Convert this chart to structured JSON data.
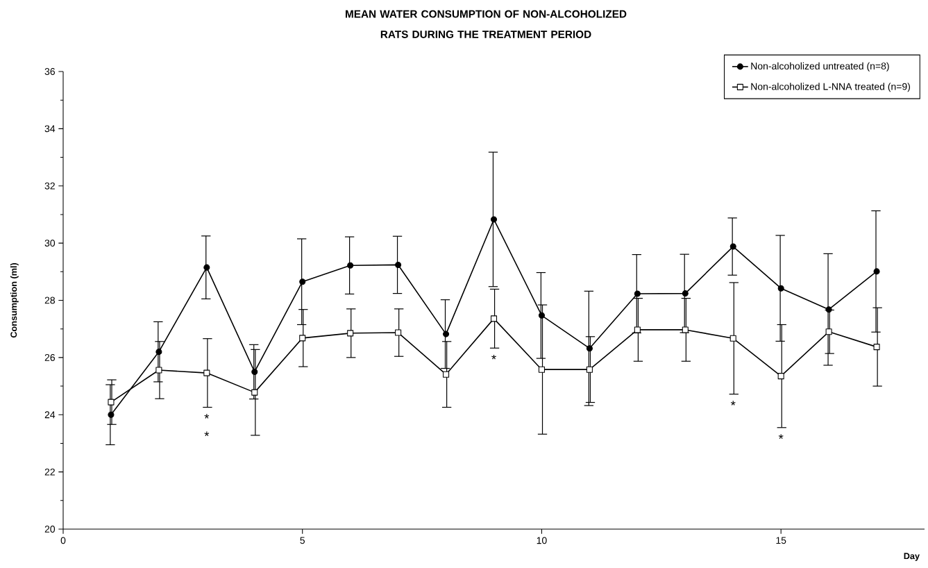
{
  "chart_data": {
    "type": "line",
    "title": "MEAN WATER CONSUMPTION OF NON-ALCOHOLIZED RATS DURING THE TREATMENT PERIOD",
    "xlabel": "Day",
    "ylabel": "Consumption (ml)",
    "x": [
      1,
      2,
      3,
      4,
      5,
      6,
      7,
      8,
      9,
      10,
      11,
      12,
      13,
      14,
      15,
      16,
      17
    ],
    "xlim": [
      0,
      18
    ],
    "xticks": [
      0,
      5,
      10,
      15
    ],
    "ylim": [
      20,
      36
    ],
    "yticks": [
      20,
      22,
      24,
      26,
      28,
      30,
      32,
      34,
      36
    ],
    "series": [
      {
        "name": "Non-alcoholized untreated (n=8)",
        "color": "#000000",
        "marker": "circle",
        "values": [
          24.0,
          26.2,
          29.15,
          25.5,
          28.65,
          29.22,
          29.24,
          26.82,
          30.83,
          27.47,
          26.32,
          28.23,
          28.24,
          29.88,
          28.42,
          27.68,
          29.01
        ],
        "errors": [
          1.05,
          1.05,
          1.1,
          0.95,
          1.5,
          1.0,
          1.0,
          1.2,
          2.35,
          1.5,
          2.0,
          1.37,
          1.37,
          1.0,
          1.85,
          1.95,
          2.12
        ]
      },
      {
        "name": "Non-alcoholized L-NNA treated (n=9)",
        "color": "#000000",
        "marker": "square",
        "values": [
          24.44,
          25.56,
          25.46,
          24.78,
          26.68,
          26.85,
          26.87,
          25.41,
          27.36,
          25.58,
          25.58,
          26.97,
          26.97,
          26.67,
          25.35,
          26.9,
          26.37
        ],
        "errors": [
          0.78,
          1.0,
          1.2,
          1.5,
          1.0,
          0.85,
          0.83,
          1.15,
          1.03,
          2.26,
          1.15,
          1.1,
          1.1,
          1.95,
          1.8,
          0.76,
          1.37
        ]
      }
    ],
    "annotations": [
      {
        "text": "*",
        "x": 3,
        "y": 24.26
      },
      {
        "text": "*",
        "x": 3,
        "y": 24.26
      },
      {
        "text": "*",
        "x": 9,
        "y": 26.33
      },
      {
        "text": "*",
        "x": 14,
        "y": 24.72
      },
      {
        "text": "*",
        "x": 15,
        "y": 23.55
      }
    ],
    "legend": "top right",
    "grid": false,
    "line_style": "solid"
  }
}
